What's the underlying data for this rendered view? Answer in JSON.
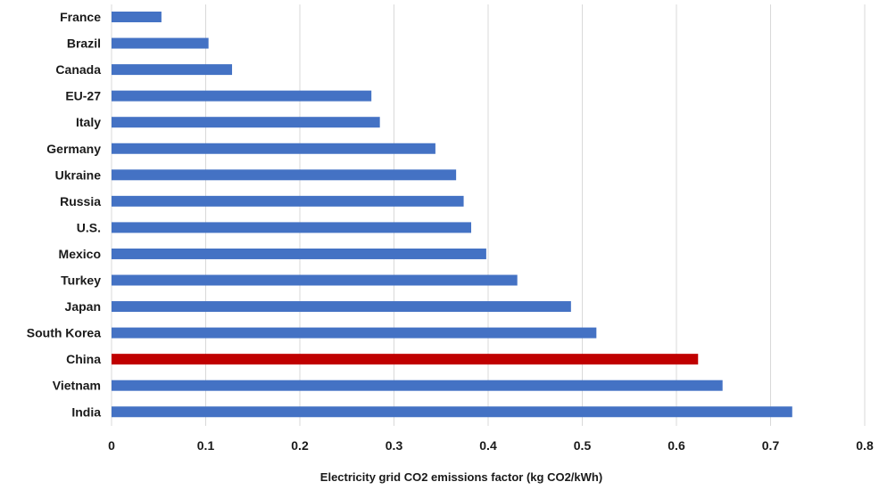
{
  "chart_data": {
    "type": "bar",
    "orientation": "horizontal",
    "categories": [
      "France",
      "Brazil",
      "Canada",
      "EU-27",
      "Italy",
      "Germany",
      "Ukraine",
      "Russia",
      "U.S.",
      "Mexico",
      "Turkey",
      "Japan",
      "South Korea",
      "China",
      "Vietnam",
      "India"
    ],
    "values": [
      0.053,
      0.103,
      0.128,
      0.276,
      0.285,
      0.344,
      0.366,
      0.374,
      0.382,
      0.398,
      0.431,
      0.488,
      0.515,
      0.623,
      0.649,
      0.723
    ],
    "colors": [
      "#4472c4",
      "#4472c4",
      "#4472c4",
      "#4472c4",
      "#4472c4",
      "#4472c4",
      "#4472c4",
      "#4472c4",
      "#4472c4",
      "#4472c4",
      "#4472c4",
      "#4472c4",
      "#4472c4",
      "#c00000",
      "#4472c4",
      "#4472c4"
    ],
    "default_color": "#4472c4",
    "highlight_color": "#c00000",
    "xlim": [
      0,
      0.8
    ],
    "xticks": [
      "0",
      "0.1",
      "0.2",
      "0.3",
      "0.4",
      "0.5",
      "0.6",
      "0.7",
      "0.8"
    ],
    "xlabel": "Electricity grid CO2 emissions factor (kg CO2/kWh)",
    "ylabel": "",
    "title": "",
    "grid": "vertical",
    "legend": "none"
  }
}
